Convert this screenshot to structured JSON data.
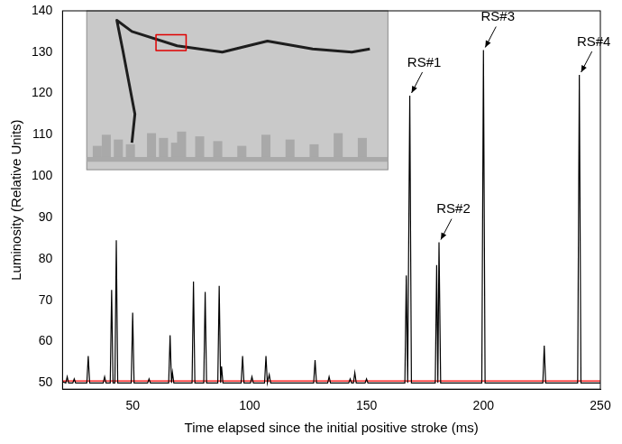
{
  "chart_data": {
    "type": "line",
    "x_label": "Time elapsed since the initial positive stroke (ms)",
    "y_label": "Luminosity (Relative Units)",
    "xlim": [
      20,
      250
    ],
    "xticks": [
      50,
      100,
      150,
      200,
      250
    ],
    "ylim": [
      48.5,
      140
    ],
    "yticks": [
      50,
      60,
      70,
      80,
      90,
      100,
      110,
      120,
      130,
      140
    ],
    "grid": false,
    "series": [
      {
        "color": "#000000",
        "line_style": "solid",
        "x": [
          20,
          21.4,
          22,
          22.6,
          24.4,
          25,
          25.6,
          30.4,
          31,
          31.6,
          37.4,
          38,
          38.6,
          40.4,
          41,
          41.6,
          42.4,
          43,
          43.6,
          49.4,
          50,
          50.6,
          56.4,
          57,
          57.6,
          65.4,
          66,
          66.6,
          67,
          67.6,
          75.4,
          76,
          76.6,
          80.4,
          81,
          81.6,
          86.4,
          87,
          87.6,
          88,
          88.6,
          96.4,
          97,
          97.6,
          100.4,
          101,
          101.6,
          106.4,
          107,
          107.6,
          108.4,
          109,
          127.4,
          128,
          128.6,
          133.4,
          134,
          134.6,
          142.4,
          143,
          143.6,
          144.4,
          145,
          145.6,
          149.4,
          150,
          150.6,
          166.4,
          167,
          167.6,
          168.5,
          169.2,
          179.4,
          180,
          180.5,
          181,
          181.7,
          199.3,
          200,
          200.7,
          225.4,
          226,
          226.6,
          240.3,
          241,
          241.7,
          250
        ],
        "values": [
          50.3,
          50,
          51.5,
          50,
          50,
          51,
          50,
          50,
          56.5,
          50,
          50,
          51.5,
          50,
          50,
          72.5,
          50,
          50,
          84.5,
          50,
          50,
          67,
          50,
          50,
          51,
          50,
          50,
          61.5,
          50,
          52.5,
          50,
          50,
          74.5,
          50,
          50,
          72,
          50,
          50,
          73.5,
          50,
          54,
          50,
          50,
          56.5,
          50,
          50,
          51.5,
          50,
          50,
          56.5,
          50,
          52,
          50,
          50,
          55.5,
          50,
          50,
          51.5,
          50,
          50,
          51,
          50,
          50,
          52.5,
          50,
          50,
          51,
          50,
          50,
          76,
          50,
          119.5,
          50,
          50,
          78.5,
          50,
          84,
          50,
          50,
          130.5,
          50,
          50,
          59,
          50,
          50,
          124.5,
          50,
          50
        ]
      },
      {
        "color": "#ff0000",
        "line_style": "solid",
        "x": [
          20,
          250
        ],
        "values": [
          50.5,
          50.5
        ]
      }
    ],
    "annotations": [
      {
        "text": "RS#1",
        "x": 168.5,
        "y": 119.5
      },
      {
        "text": "RS#2",
        "x": 181,
        "y": 84
      },
      {
        "text": "RS#3",
        "x": 200,
        "y": 130.5
      },
      {
        "text": "RS#4",
        "x": 241,
        "y": 124.5
      }
    ]
  }
}
